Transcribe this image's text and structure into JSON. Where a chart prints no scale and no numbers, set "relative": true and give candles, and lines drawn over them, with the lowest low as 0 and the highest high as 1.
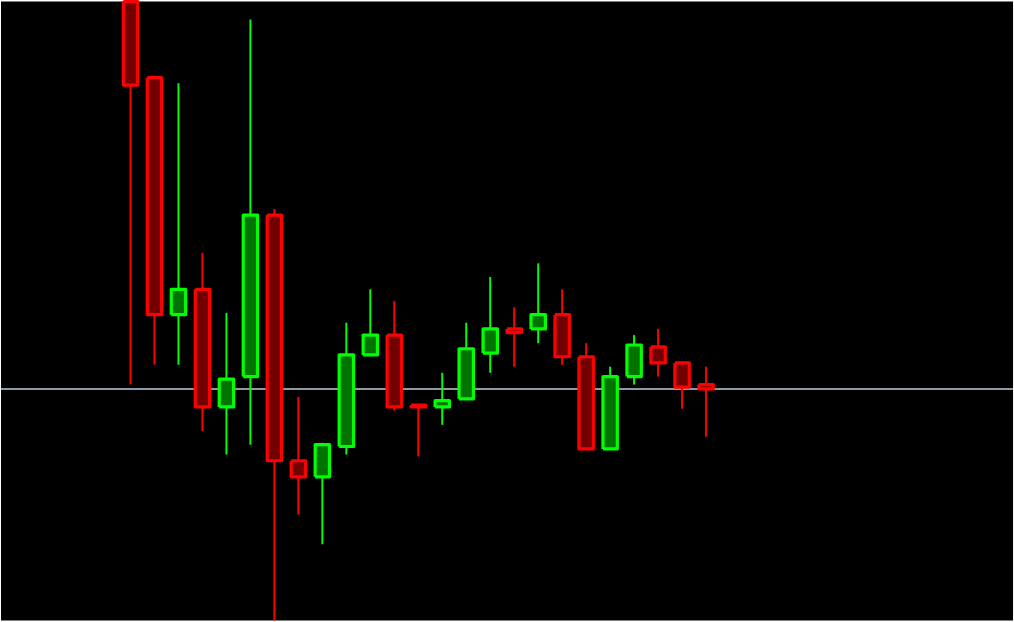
{
  "chart_data": {
    "type": "candlestick",
    "relative": true,
    "categories": [
      null,
      null,
      null,
      null,
      null,
      null,
      null,
      null,
      null,
      null,
      null,
      null,
      null,
      null,
      null,
      null,
      null,
      null,
      null,
      null,
      null,
      null,
      null,
      null,
      null
    ],
    "ohlc": [
      [
        1.0,
        1.0,
        0.381,
        0.865
      ],
      [
        0.877,
        0.877,
        0.413,
        0.494
      ],
      [
        0.494,
        0.868,
        0.413,
        0.535
      ],
      [
        0.535,
        0.594,
        0.306,
        0.345
      ],
      [
        0.345,
        0.497,
        0.268,
        0.39
      ],
      [
        0.394,
        0.971,
        0.284,
        0.655
      ],
      [
        0.655,
        0.665,
        0.0,
        0.258
      ],
      [
        0.258,
        0.361,
        0.171,
        0.232
      ],
      [
        0.232,
        0.287,
        0.123,
        0.284
      ],
      [
        0.281,
        0.481,
        0.268,
        0.429
      ],
      [
        0.429,
        0.535,
        0.429,
        0.461
      ],
      [
        0.461,
        0.516,
        0.339,
        0.345
      ],
      [
        0.348,
        0.348,
        0.265,
        0.345
      ],
      [
        0.345,
        0.4,
        0.316,
        0.355
      ],
      [
        0.358,
        0.481,
        0.358,
        0.439
      ],
      [
        0.432,
        0.555,
        0.4,
        0.471
      ],
      [
        0.471,
        0.506,
        0.41,
        0.465
      ],
      [
        0.471,
        0.577,
        0.448,
        0.494
      ],
      [
        0.494,
        0.535,
        0.413,
        0.426
      ],
      [
        0.426,
        0.448,
        0.277,
        0.277
      ],
      [
        0.277,
        0.41,
        0.277,
        0.394
      ],
      [
        0.394,
        0.461,
        0.381,
        0.445
      ],
      [
        0.442,
        0.471,
        0.394,
        0.416
      ],
      [
        0.416,
        0.416,
        0.342,
        0.377
      ],
      [
        0.381,
        0.41,
        0.297,
        0.374
      ]
    ],
    "colors": [
      "#ff0000",
      "#ff0000",
      "#00ff00",
      "#ff0000",
      "#00ff00",
      "#00ff00",
      "#ff0000",
      "#ff0000",
      "#00ff00",
      "#00ff00",
      "#00ff00",
      "#ff0000",
      "#ff0000",
      "#00ff00",
      "#00ff00",
      "#00ff00",
      "#ff0000",
      "#00ff00",
      "#ff0000",
      "#ff0000",
      "#00ff00",
      "#00ff00",
      "#ff0000",
      "#ff0000",
      "#ff0000"
    ],
    "ref_lines": [
      {
        "axis": "y",
        "value": 0.374,
        "color": "#8c9aa8"
      }
    ]
  }
}
